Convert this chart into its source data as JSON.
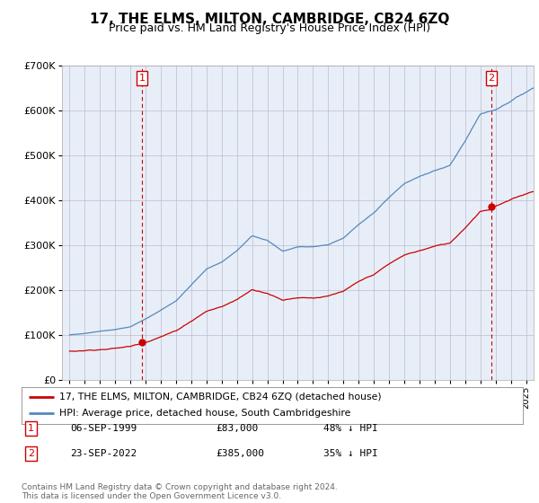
{
  "title": "17, THE ELMS, MILTON, CAMBRIDGE, CB24 6ZQ",
  "subtitle": "Price paid vs. HM Land Registry's House Price Index (HPI)",
  "red_label": "17, THE ELMS, MILTON, CAMBRIDGE, CB24 6ZQ (detached house)",
  "blue_label": "HPI: Average price, detached house, South Cambridgeshire",
  "annotation1_date": "06-SEP-1999",
  "annotation1_price": "£83,000",
  "annotation1_hpi": "48% ↓ HPI",
  "annotation2_date": "23-SEP-2022",
  "annotation2_price": "£385,000",
  "annotation2_hpi": "35% ↓ HPI",
  "footer": "Contains HM Land Registry data © Crown copyright and database right 2024.\nThis data is licensed under the Open Government Licence v3.0.",
  "sale1_year": 1999.75,
  "sale1_price": 83000,
  "sale2_year": 2022.73,
  "sale2_price": 385000,
  "red_color": "#cc0000",
  "blue_color": "#5588bb",
  "vline_color": "#cc0000",
  "grid_color": "#bbbbcc",
  "bg_color": "#e8eef8",
  "background_color": "#ffffff",
  "ylim": [
    0,
    700000
  ],
  "xlim_start": 1994.5,
  "xlim_end": 2025.5,
  "title_fontsize": 11,
  "subtitle_fontsize": 9
}
